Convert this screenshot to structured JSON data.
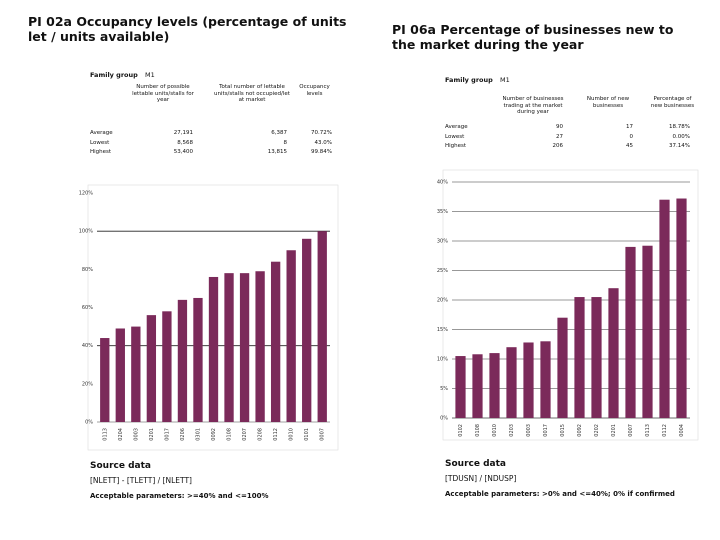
{
  "panels": [
    {
      "title": "PI 02a Occupancy levels (percentage of units let / units available)",
      "family_label": "Family group",
      "family_value": "M1",
      "table": {
        "headers": [
          "Number of possible lettable units/stalls for year",
          "Total number of lettable units/stalls not occupied/let at market",
          "Occupancy levels"
        ],
        "rows": [
          [
            "Average",
            "27,191",
            "6,387",
            "70.72%"
          ],
          [
            "Lowest",
            "8,568",
            "8",
            "43.0%"
          ],
          [
            "Highest",
            "53,400",
            "13,815",
            "99.84%"
          ]
        ]
      },
      "source_label": "Source data",
      "source_formula": "[NLETT] - [TLETT] / [NLETT]",
      "parameters": "Acceptable parameters: >=40% and <=100%"
    },
    {
      "title": "PI 06a Percentage of businesses new to the market during the year",
      "family_label": "Family group",
      "family_value": "M1",
      "table": {
        "headers": [
          "Number of businesses trading at the market during year",
          "Number of new businesses",
          "Percentage of new businesses"
        ],
        "rows": [
          [
            "Average",
            "90",
            "17",
            "18.78%"
          ],
          [
            "Lowest",
            "27",
            "0",
            "0.00%"
          ],
          [
            "Highest",
            "206",
            "45",
            "37.14%"
          ]
        ]
      },
      "source_label": "Source data",
      "source_formula": "[TDUSN] / [NDUSP]",
      "parameters": "Acceptable parameters: >0% and <=40%; 0% if confirmed"
    }
  ],
  "chart_data": [
    {
      "type": "bar",
      "color": "#7b2a5a",
      "grid": false,
      "reference_lines": [
        40,
        100
      ],
      "categories": [
        "0113",
        "0204",
        "0003",
        "0201",
        "0017",
        "0206",
        "0301",
        "0092",
        "0108",
        "0207",
        "0208",
        "0112",
        "0010",
        "0101",
        "0007"
      ],
      "values": [
        44,
        49,
        50,
        56,
        58,
        64,
        65,
        76,
        78,
        78,
        79,
        84,
        90,
        96,
        100
      ],
      "ylim": [
        0,
        120
      ],
      "yticks": [
        {
          "value": 0,
          "label": "0%"
        },
        {
          "value": 20,
          "label": "20%"
        },
        {
          "value": 40,
          "label": "40%"
        },
        {
          "value": 60,
          "label": "60%"
        },
        {
          "value": 80,
          "label": "80%"
        },
        {
          "value": 100,
          "label": "100%"
        },
        {
          "value": 120,
          "label": "120%"
        }
      ]
    },
    {
      "type": "bar",
      "color": "#7b2a5a",
      "grid": true,
      "reference_lines": [],
      "categories": [
        "0102",
        "0108",
        "0010",
        "0203",
        "0003",
        "0017",
        "0015",
        "0092",
        "0202",
        "0201",
        "0007",
        "0113",
        "0112",
        "0004"
      ],
      "values": [
        10.5,
        10.8,
        11,
        12,
        12.8,
        13,
        17,
        20.5,
        20.5,
        22,
        29,
        29.2,
        37,
        37.2
      ],
      "ylim": [
        0,
        40
      ],
      "yticks": [
        {
          "value": 0,
          "label": "0%"
        },
        {
          "value": 5,
          "label": "5%"
        },
        {
          "value": 10,
          "label": "10%"
        },
        {
          "value": 15,
          "label": "15%"
        },
        {
          "value": 20,
          "label": "20%"
        },
        {
          "value": 25,
          "label": "25%"
        },
        {
          "value": 30,
          "label": "30%"
        },
        {
          "value": 35,
          "label": "35%"
        },
        {
          "value": 40,
          "label": "40%"
        }
      ]
    }
  ]
}
